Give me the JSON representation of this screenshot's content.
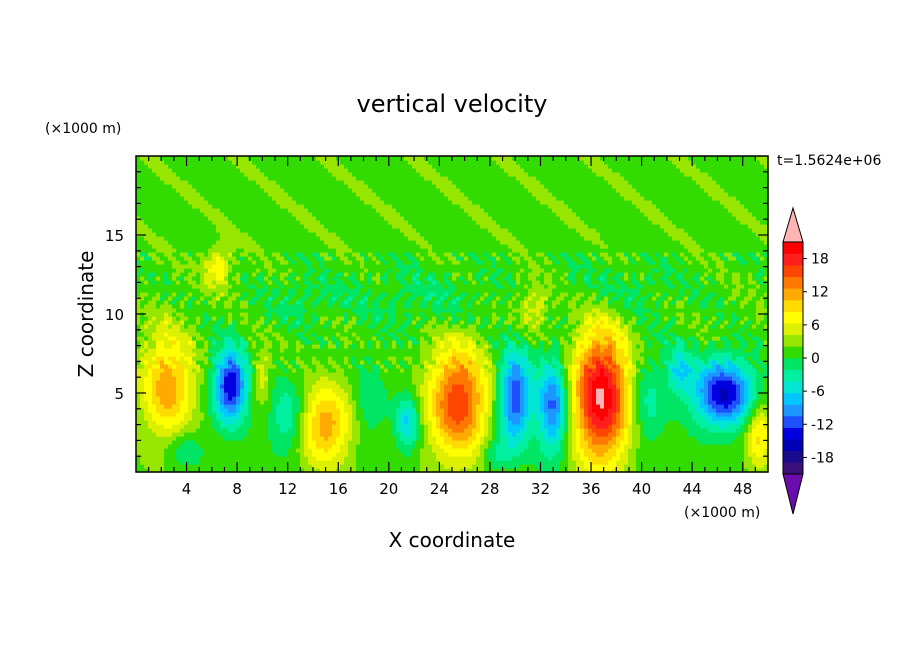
{
  "chart_data": {
    "type": "heatmap",
    "title": "vertical velocity",
    "xlabel": "X coordinate",
    "ylabel": "Z coordinate",
    "x_unit": "(×1000 m)",
    "y_unit": "(×1000 m)",
    "time_label": "t=1.5624e+06",
    "xlim": [
      0,
      50
    ],
    "ylim": [
      0,
      20
    ],
    "xticks": [
      4,
      8,
      12,
      16,
      20,
      24,
      28,
      32,
      36,
      40,
      44,
      48
    ],
    "yticks": [
      5,
      10,
      15
    ],
    "colorbar": {
      "ticks": [
        18,
        12,
        6,
        0,
        -6,
        -12,
        -18
      ],
      "min": -21,
      "max": 21,
      "extend": "both",
      "colors": [
        "#6a0dad",
        "#3b0f7a",
        "#1a0a8c",
        "#0000b4",
        "#0000e0",
        "#1e50ff",
        "#1e96ff",
        "#00c8ff",
        "#00e6d2",
        "#00f0a0",
        "#00e664",
        "#32dc00",
        "#96e600",
        "#dcf000",
        "#ffff00",
        "#ffdc00",
        "#ffaa00",
        "#ff7800",
        "#ff4600",
        "#ff1e1e",
        "#ff0000",
        "#ffb4b4"
      ]
    },
    "features": [
      {
        "x": 2.5,
        "z": 5.5,
        "w": 9,
        "sx": 2.0,
        "sz": 3.2
      },
      {
        "x": 7.5,
        "z": 5.5,
        "w": -14,
        "sx": 1.3,
        "sz": 2.3
      },
      {
        "x": 6.5,
        "z": 13.0,
        "w": 6,
        "sx": 1.0,
        "sz": 1.2
      },
      {
        "x": 10.0,
        "z": 6.0,
        "w": 4,
        "sx": 0.6,
        "sz": 1.6
      },
      {
        "x": 12.0,
        "z": 3.5,
        "w": -5,
        "sx": 1.4,
        "sz": 2.2
      },
      {
        "x": 15.0,
        "z": 3.0,
        "w": 9,
        "sx": 2.0,
        "sz": 2.5
      },
      {
        "x": 18.5,
        "z": 4.5,
        "w": -3,
        "sx": 1.3,
        "sz": 2.5
      },
      {
        "x": 21.5,
        "z": 3.2,
        "w": -7,
        "sx": 0.9,
        "sz": 1.8
      },
      {
        "x": 25.5,
        "z": 4.5,
        "w": 13,
        "sx": 2.3,
        "sz": 3.5
      },
      {
        "x": 30.0,
        "z": 4.8,
        "w": -12,
        "sx": 1.3,
        "sz": 3.0
      },
      {
        "x": 33.0,
        "z": 4.2,
        "w": -11,
        "sx": 1.2,
        "sz": 3.0
      },
      {
        "x": 31.5,
        "z": 10.5,
        "w": 4,
        "sx": 1.5,
        "sz": 1.6
      },
      {
        "x": 36.8,
        "z": 4.8,
        "w": 17,
        "sx": 2.2,
        "sz": 4.2
      },
      {
        "x": 40.5,
        "z": 4.5,
        "w": -4,
        "sx": 1.3,
        "sz": 3.0
      },
      {
        "x": 46.5,
        "z": 5.0,
        "w": -14,
        "sx": 2.4,
        "sz": 2.1
      },
      {
        "x": 43.0,
        "z": 6.5,
        "w": -6,
        "sx": 1.0,
        "sz": 1.6
      },
      {
        "x": 49.3,
        "z": 2.5,
        "w": 7,
        "sx": 1.0,
        "sz": 2.0
      },
      {
        "x": 23.0,
        "z": 11.0,
        "w": -2,
        "sx": 6.0,
        "sz": 2.0
      },
      {
        "x": 38.0,
        "z": 11.5,
        "w": -2,
        "sx": 5.0,
        "sz": 2.0
      },
      {
        "x": 13.0,
        "z": 11.0,
        "w": -2,
        "sx": 3.0,
        "sz": 1.5
      },
      {
        "x": 4.0,
        "z": 1.5,
        "w": -3,
        "sx": 1.5,
        "sz": 1.2
      },
      {
        "x": 28.5,
        "z": 1.2,
        "w": -4,
        "sx": 1.2,
        "sz": 1.0
      }
    ]
  }
}
